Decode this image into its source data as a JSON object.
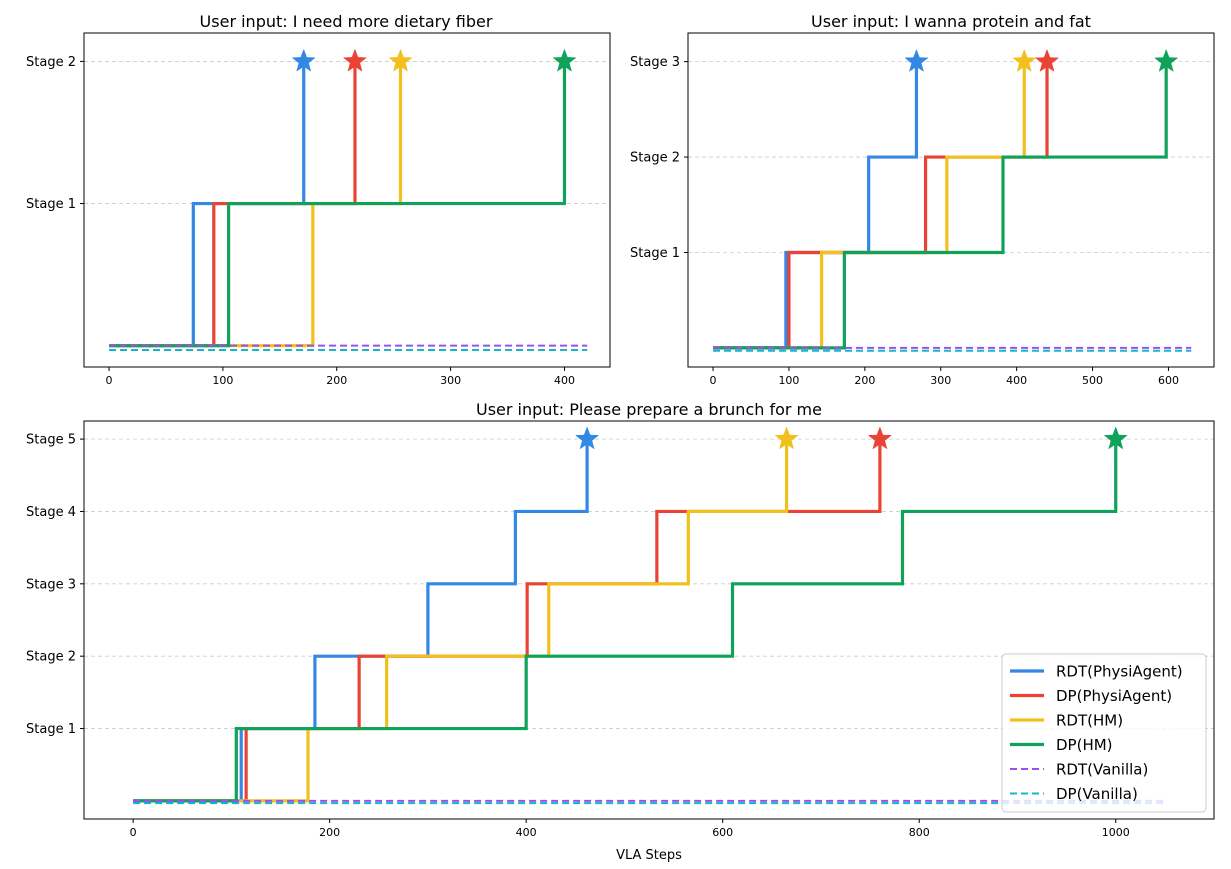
{
  "figure": {
    "xlabel": "VLA Steps"
  },
  "legend": {
    "placement": "lower-right",
    "entries": [
      {
        "key": "rdt_pa",
        "label": "RDT(PhysiAgent)"
      },
      {
        "key": "dp_pa",
        "label": "DP(PhysiAgent)"
      },
      {
        "key": "rdt_hm",
        "label": "RDT(HM)"
      },
      {
        "key": "dp_hm",
        "label": "DP(HM)"
      },
      {
        "key": "rdt_van",
        "label": "RDT(Vanilla)"
      },
      {
        "key": "dp_van",
        "label": "DP(Vanilla)"
      }
    ]
  },
  "styles": {
    "rdt_pa": {
      "color": "#3388e6",
      "dash": false
    },
    "dp_pa": {
      "color": "#ea4335",
      "dash": false
    },
    "rdt_hm": {
      "color": "#f2c01d",
      "dash": false
    },
    "dp_hm": {
      "color": "#0fa259",
      "dash": false
    },
    "rdt_van": {
      "color": "#9b4ff2",
      "dash": true
    },
    "dp_van": {
      "color": "#12b8c6",
      "dash": true
    }
  },
  "chart_data": [
    {
      "type": "line",
      "title": "User input: I need more dietary fiber",
      "xticks": [
        0,
        100,
        200,
        300,
        400
      ],
      "xlim": [
        -22,
        440
      ],
      "ylim": [
        -0.15,
        2.2
      ],
      "yticks": [
        {
          "v": 1,
          "label": "Stage 1"
        },
        {
          "v": 2,
          "label": "Stage 2"
        }
      ],
      "series": [
        {
          "key": "rdt_pa",
          "steps": [
            [
              0,
              0
            ],
            [
              74,
              1
            ],
            [
              171,
              2
            ]
          ],
          "star": [
            171,
            2
          ]
        },
        {
          "key": "dp_pa",
          "steps": [
            [
              0,
              0
            ],
            [
              92,
              1
            ],
            [
              216,
              2
            ]
          ],
          "star": [
            216,
            2
          ]
        },
        {
          "key": "rdt_hm",
          "steps": [
            [
              0,
              0
            ],
            [
              179,
              1
            ],
            [
              256,
              2
            ]
          ],
          "star": [
            256,
            2
          ]
        },
        {
          "key": "dp_hm",
          "steps": [
            [
              0,
              0
            ],
            [
              105,
              1
            ],
            [
              400,
              2
            ]
          ],
          "star": [
            400,
            2
          ]
        },
        {
          "key": "rdt_van",
          "const": 0.0,
          "x": [
            0,
            420
          ]
        },
        {
          "key": "dp_van",
          "const": -0.03,
          "x": [
            0,
            420
          ]
        }
      ]
    },
    {
      "type": "line",
      "title": "User input: I wanna protein and fat",
      "xticks": [
        0,
        100,
        200,
        300,
        400,
        500,
        600
      ],
      "xlim": [
        -33,
        660
      ],
      "ylim": [
        -0.2,
        3.3
      ],
      "yticks": [
        {
          "v": 1,
          "label": "Stage 1"
        },
        {
          "v": 2,
          "label": "Stage 2"
        },
        {
          "v": 3,
          "label": "Stage 3"
        }
      ],
      "series": [
        {
          "key": "rdt_pa",
          "steps": [
            [
              0,
              0
            ],
            [
              96,
              1
            ],
            [
              205,
              2
            ],
            [
              268,
              3
            ]
          ],
          "star": [
            268,
            3
          ]
        },
        {
          "key": "dp_pa",
          "steps": [
            [
              0,
              0
            ],
            [
              100,
              1
            ],
            [
              280,
              2
            ],
            [
              440,
              3
            ]
          ],
          "star": [
            440,
            3
          ]
        },
        {
          "key": "rdt_hm",
          "steps": [
            [
              0,
              0
            ],
            [
              143,
              1
            ],
            [
              308,
              2
            ],
            [
              410,
              3
            ]
          ],
          "star": [
            410,
            3
          ]
        },
        {
          "key": "dp_hm",
          "steps": [
            [
              0,
              0
            ],
            [
              173,
              1
            ],
            [
              382,
              2
            ],
            [
              597,
              3
            ]
          ],
          "star": [
            597,
            3
          ]
        },
        {
          "key": "rdt_van",
          "const": 0.0,
          "x": [
            0,
            630
          ]
        },
        {
          "key": "dp_van",
          "const": -0.03,
          "x": [
            0,
            630
          ]
        }
      ]
    },
    {
      "type": "line",
      "title": "User input: Please prepare a brunch for me",
      "xticks": [
        0,
        200,
        400,
        600,
        800,
        1000
      ],
      "xlim": [
        -50,
        1100
      ],
      "ylim": [
        -0.25,
        5.25
      ],
      "yticks": [
        {
          "v": 1,
          "label": "Stage 1"
        },
        {
          "v": 2,
          "label": "Stage 2"
        },
        {
          "v": 3,
          "label": "Stage 3"
        },
        {
          "v": 4,
          "label": "Stage 4"
        },
        {
          "v": 5,
          "label": "Stage 5"
        }
      ],
      "series": [
        {
          "key": "rdt_pa",
          "steps": [
            [
              0,
              0
            ],
            [
              110,
              1
            ],
            [
              185,
              2
            ],
            [
              300,
              3
            ],
            [
              389,
              4
            ],
            [
              462,
              5
            ]
          ],
          "star": [
            462,
            5
          ]
        },
        {
          "key": "dp_pa",
          "steps": [
            [
              0,
              0
            ],
            [
              115,
              1
            ],
            [
              230,
              2
            ],
            [
              401,
              3
            ],
            [
              533,
              4
            ],
            [
              760,
              5
            ]
          ],
          "star": [
            760,
            5
          ]
        },
        {
          "key": "rdt_hm",
          "steps": [
            [
              0,
              0
            ],
            [
              178,
              1
            ],
            [
              258,
              2
            ],
            [
              423,
              3
            ],
            [
              565,
              4
            ],
            [
              665,
              5
            ]
          ],
          "star": [
            665,
            5
          ]
        },
        {
          "key": "dp_hm",
          "steps": [
            [
              0,
              0
            ],
            [
              105,
              1
            ],
            [
              400,
              2
            ],
            [
              610,
              3
            ],
            [
              783,
              4
            ],
            [
              1000,
              5
            ]
          ],
          "star": [
            1000,
            5
          ]
        },
        {
          "key": "rdt_van",
          "const": 0.0,
          "x": [
            0,
            1050
          ]
        },
        {
          "key": "dp_van",
          "const": -0.03,
          "x": [
            0,
            1050
          ]
        }
      ]
    }
  ]
}
